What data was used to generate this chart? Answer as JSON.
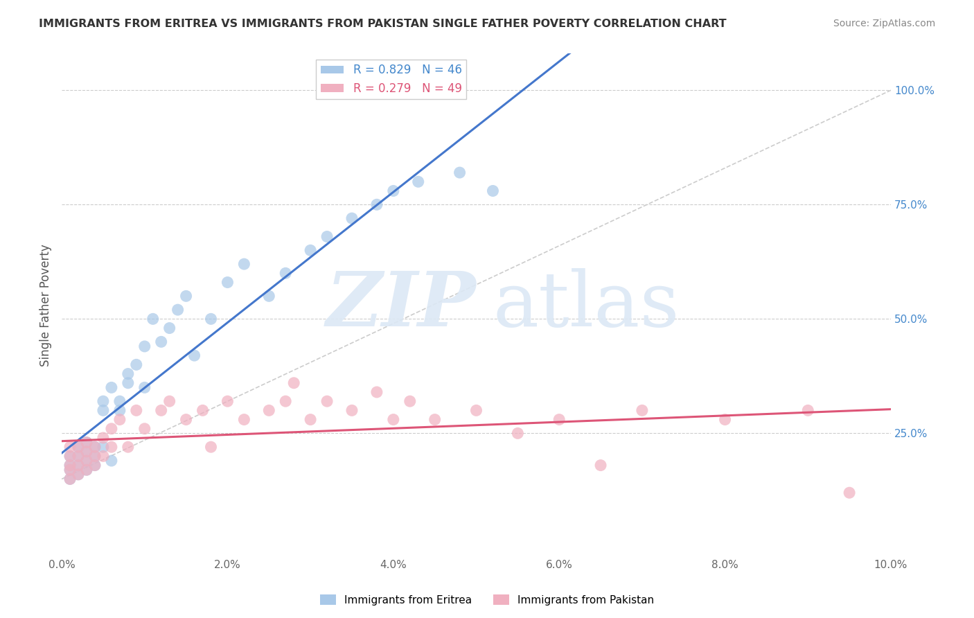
{
  "title": "IMMIGRANTS FROM ERITREA VS IMMIGRANTS FROM PAKISTAN SINGLE FATHER POVERTY CORRELATION CHART",
  "source": "Source: ZipAtlas.com",
  "ylabel": "Single Father Poverty",
  "xlim": [
    0.0,
    0.1
  ],
  "ylim": [
    -0.02,
    1.08
  ],
  "xticks": [
    0.0,
    0.02,
    0.04,
    0.06,
    0.08,
    0.1
  ],
  "xticklabels": [
    "0.0%",
    "2.0%",
    "4.0%",
    "6.0%",
    "8.0%",
    "10.0%"
  ],
  "yticks_right": [
    0.25,
    0.5,
    0.75,
    1.0
  ],
  "yticklabels_right": [
    "25.0%",
    "50.0%",
    "75.0%",
    "100.0%"
  ],
  "eritrea_color": "#a8c8e8",
  "pakistan_color": "#f0b0c0",
  "eritrea_line_color": "#4477cc",
  "pakistan_line_color": "#dd5577",
  "diag_line_color": "#cccccc",
  "grid_color": "#cccccc",
  "right_label_color": "#4488cc",
  "R_eritrea": 0.829,
  "N_eritrea": 46,
  "R_pakistan": 0.279,
  "N_pakistan": 49,
  "eritrea_x": [
    0.001,
    0.001,
    0.001,
    0.001,
    0.002,
    0.002,
    0.002,
    0.002,
    0.003,
    0.003,
    0.003,
    0.003,
    0.004,
    0.004,
    0.004,
    0.005,
    0.005,
    0.005,
    0.006,
    0.006,
    0.007,
    0.007,
    0.008,
    0.008,
    0.009,
    0.01,
    0.01,
    0.011,
    0.012,
    0.013,
    0.014,
    0.015,
    0.016,
    0.018,
    0.02,
    0.022,
    0.025,
    0.027,
    0.03,
    0.032,
    0.035,
    0.038,
    0.04,
    0.043,
    0.048,
    0.052
  ],
  "eritrea_y": [
    0.15,
    0.17,
    0.18,
    0.2,
    0.16,
    0.18,
    0.2,
    0.22,
    0.17,
    0.19,
    0.21,
    0.23,
    0.18,
    0.2,
    0.22,
    0.22,
    0.3,
    0.32,
    0.19,
    0.35,
    0.3,
    0.32,
    0.36,
    0.38,
    0.4,
    0.35,
    0.44,
    0.5,
    0.45,
    0.48,
    0.52,
    0.55,
    0.42,
    0.5,
    0.58,
    0.62,
    0.55,
    0.6,
    0.65,
    0.68,
    0.72,
    0.75,
    0.78,
    0.8,
    0.82,
    0.78
  ],
  "pakistan_x": [
    0.001,
    0.001,
    0.001,
    0.001,
    0.001,
    0.002,
    0.002,
    0.002,
    0.002,
    0.003,
    0.003,
    0.003,
    0.003,
    0.004,
    0.004,
    0.004,
    0.005,
    0.005,
    0.006,
    0.006,
    0.007,
    0.008,
    0.009,
    0.01,
    0.012,
    0.013,
    0.015,
    0.017,
    0.018,
    0.02,
    0.022,
    0.025,
    0.027,
    0.028,
    0.03,
    0.032,
    0.035,
    0.038,
    0.04,
    0.042,
    0.045,
    0.05,
    0.055,
    0.06,
    0.065,
    0.07,
    0.08,
    0.09,
    0.095
  ],
  "pakistan_y": [
    0.15,
    0.17,
    0.18,
    0.2,
    0.22,
    0.16,
    0.18,
    0.2,
    0.22,
    0.17,
    0.19,
    0.21,
    0.23,
    0.18,
    0.2,
    0.22,
    0.2,
    0.24,
    0.22,
    0.26,
    0.28,
    0.22,
    0.3,
    0.26,
    0.3,
    0.32,
    0.28,
    0.3,
    0.22,
    0.32,
    0.28,
    0.3,
    0.32,
    0.36,
    0.28,
    0.32,
    0.3,
    0.34,
    0.28,
    0.32,
    0.28,
    0.3,
    0.25,
    0.28,
    0.18,
    0.3,
    0.28,
    0.3,
    0.12
  ]
}
